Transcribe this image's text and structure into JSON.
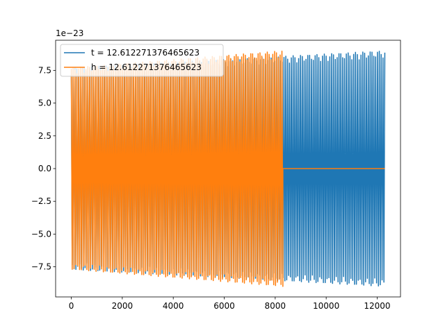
{
  "chart_data": {
    "type": "line",
    "title": "",
    "xlabel": "",
    "ylabel": "",
    "xlim": [
      -615,
      12915
    ],
    "ylim": [
      -9.8,
      9.8
    ],
    "y_scale_offset": "1e−23",
    "x_ticks": [
      0,
      2000,
      4000,
      6000,
      8000,
      10000,
      12000
    ],
    "x_tick_labels": [
      "0",
      "2000",
      "4000",
      "6000",
      "8000",
      "10000",
      "12000"
    ],
    "y_ticks": [
      -7.5,
      -5.0,
      -2.5,
      0.0,
      2.5,
      5.0,
      7.5
    ],
    "y_tick_labels": [
      "−7.5",
      "−5.0",
      "−2.5",
      "0.0",
      "2.5",
      "5.0",
      "7.5"
    ],
    "grid": false,
    "legend_position": "top-left",
    "series": [
      {
        "name": "t = 12.612271376465623",
        "color": "#1f77b4",
        "x_range": [
          0,
          12300
        ],
        "amplitude_start": 7.7,
        "amplitude_end": 9.0,
        "oscillating": true
      },
      {
        "name": "h = 12.612271376465623",
        "color": "#ff7f0e",
        "x_range": [
          0,
          8300
        ],
        "amplitude_start": 7.7,
        "amplitude_end": 9.0,
        "oscillating": true,
        "flat_after": {
          "x_range": [
            8300,
            12300
          ],
          "value": 0.0
        }
      }
    ]
  }
}
